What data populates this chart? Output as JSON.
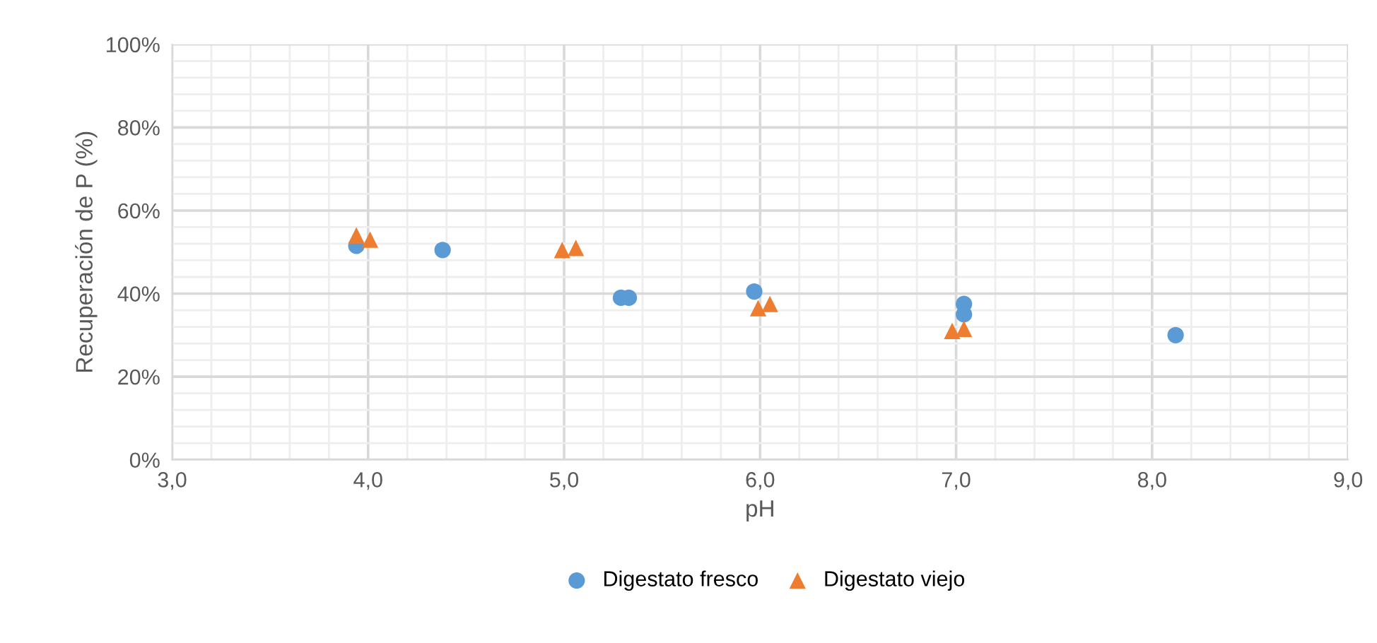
{
  "chart_data": {
    "type": "scatter",
    "xlabel": "pH",
    "ylabel": "Recuperación de P (%)",
    "series": [
      {
        "name": "Digestato fresco",
        "color": "#5b9bd5",
        "marker": "circle",
        "x": [
          3.94,
          4.38,
          5.29,
          5.33,
          5.97,
          7.04,
          7.04,
          8.12
        ],
        "values": [
          51.5,
          50.5,
          39,
          39,
          40.5,
          37.5,
          35,
          30
        ]
      },
      {
        "name": "Digestato viejo",
        "color": "#ed7d31",
        "marker": "triangle",
        "x": [
          3.94,
          4.01,
          4.99,
          5.06,
          5.99,
          6.05,
          6.98,
          7.04
        ],
        "values": [
          54,
          53,
          50.5,
          51,
          36.5,
          37.5,
          31,
          31.5
        ]
      }
    ],
    "xlim": [
      3,
      9
    ],
    "ylim": [
      0,
      100
    ],
    "xticks": [
      {
        "value": 3,
        "label": "3,0"
      },
      {
        "value": 4,
        "label": "4,0"
      },
      {
        "value": 5,
        "label": "5,0"
      },
      {
        "value": 6,
        "label": "6,0"
      },
      {
        "value": 7,
        "label": "7,0"
      },
      {
        "value": 8,
        "label": "8,0"
      },
      {
        "value": 9,
        "label": "9,0"
      }
    ],
    "yticks": [
      {
        "value": 0,
        "label": "0%"
      },
      {
        "value": 20,
        "label": "20%"
      },
      {
        "value": 40,
        "label": "40%"
      },
      {
        "value": 60,
        "label": "60%"
      },
      {
        "value": 80,
        "label": "80%"
      },
      {
        "value": 100,
        "label": "100%"
      }
    ],
    "grid": true,
    "legend": "bottom"
  }
}
